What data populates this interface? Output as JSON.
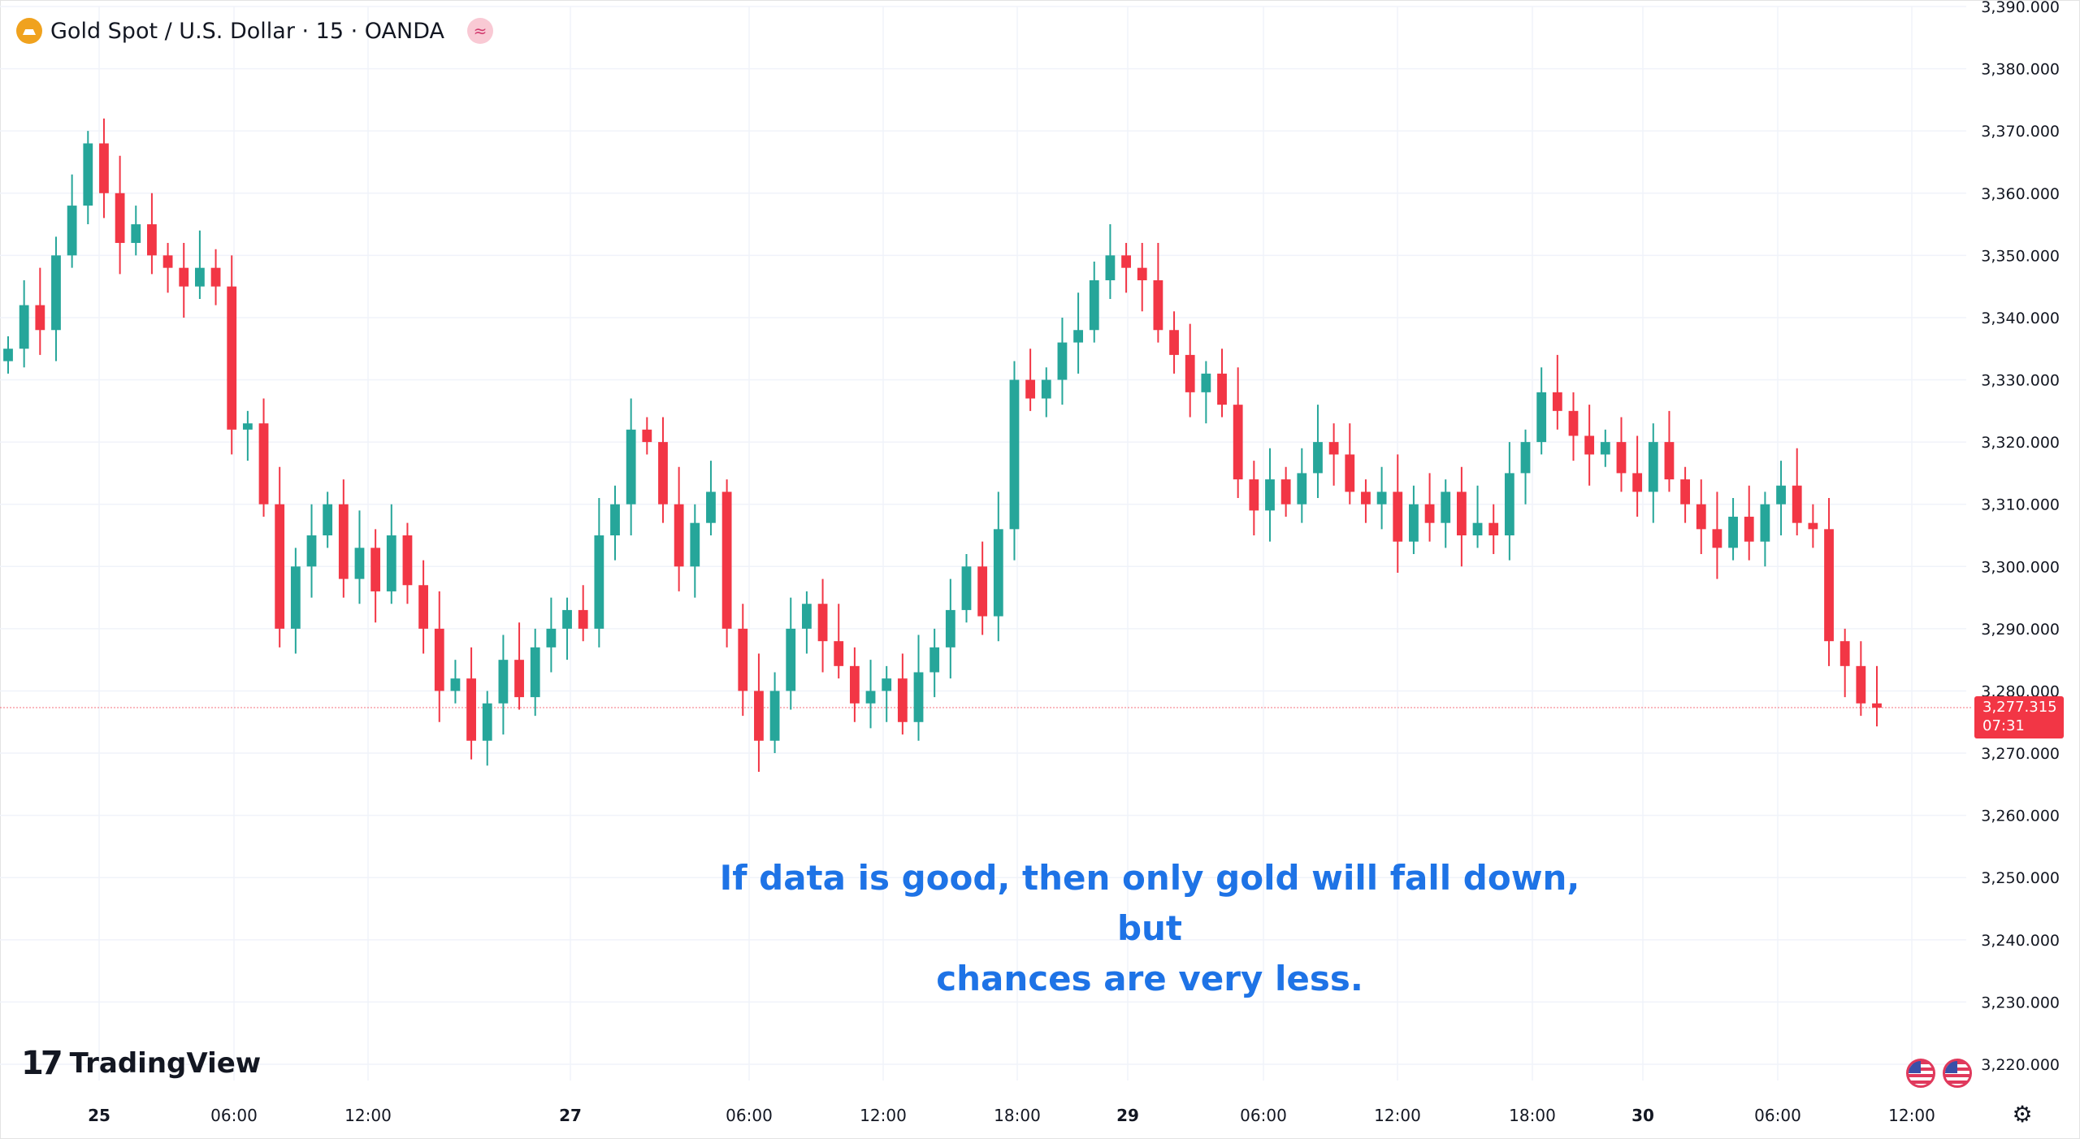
{
  "header": {
    "symbol_title": "Gold Spot / U.S. Dollar · 15 · OANDA",
    "wave_icon": "≈"
  },
  "annotation": {
    "line1": "If data is good, then only gold will fall down, but",
    "line2": "chances are very less."
  },
  "branding": {
    "logo_mark": "17",
    "logo_text": "TradingView"
  },
  "price_tag": {
    "price": "3,277.315",
    "countdown": "07:31"
  },
  "colors": {
    "up": "#26a69a",
    "down": "#f23645",
    "annotation": "#1e73e6"
  },
  "chart_data": {
    "type": "candlestick",
    "y_ticks": [
      3220,
      3230,
      3240,
      3250,
      3260,
      3270,
      3280,
      3290,
      3300,
      3310,
      3320,
      3330,
      3340,
      3350,
      3360,
      3370,
      3380,
      3390
    ],
    "y_tick_labels": [
      "3,220.000",
      "3,230.000",
      "3,240.000",
      "3,250.000",
      "3,260.000",
      "3,270.000",
      "3,280.000",
      "3,290.000",
      "3,300.000",
      "3,310.000",
      "3,320.000",
      "3,330.000",
      "3,340.000",
      "3,350.000",
      "3,360.000",
      "3,370.000",
      "3,380.000",
      "3,390.000"
    ],
    "x_tick_labels": [
      "25",
      "06:00",
      "12:00",
      "27",
      "06:00",
      "12:00",
      "18:00",
      "29",
      "06:00",
      "12:00",
      "18:00",
      "30",
      "06:00",
      "12:00"
    ],
    "current_price": 3277.315,
    "closes": [
      3335,
      3342,
      3338,
      3350,
      3358,
      3368,
      3360,
      3352,
      3355,
      3350,
      3348,
      3345,
      3348,
      3345,
      3322,
      3323,
      3310,
      3290,
      3300,
      3305,
      3310,
      3298,
      3303,
      3296,
      3305,
      3297,
      3290,
      3280,
      3282,
      3272,
      3278,
      3285,
      3279,
      3287,
      3290,
      3293,
      3290,
      3305,
      3310,
      3322,
      3320,
      3310,
      3300,
      3307,
      3312,
      3290,
      3280,
      3272,
      3280,
      3290,
      3294,
      3288,
      3284,
      3278,
      3280,
      3282,
      3275,
      3283,
      3287,
      3293,
      3300,
      3292,
      3306,
      3330,
      3327,
      3330,
      3336,
      3338,
      3346,
      3350,
      3348,
      3346,
      3338,
      3334,
      3328,
      3331,
      3326,
      3314,
      3309,
      3314,
      3310,
      3315,
      3320,
      3318,
      3312,
      3310,
      3312,
      3304,
      3310,
      3307,
      3312,
      3305,
      3307,
      3305,
      3315,
      3320,
      3328,
      3325,
      3321,
      3318,
      3320,
      3315,
      3312,
      3320,
      3314,
      3310,
      3306,
      3303,
      3308,
      3304,
      3310,
      3313,
      3307,
      3306,
      3288,
      3284,
      3278,
      3277.3
    ]
  }
}
